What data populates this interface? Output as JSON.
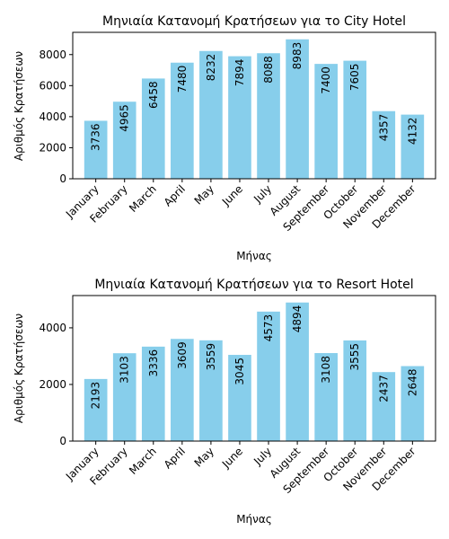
{
  "chart_data": [
    {
      "type": "bar",
      "title": "Μηνιαία Κατανομή Κρατήσεων για το City Hotel",
      "xlabel": "Μήνας",
      "ylabel": "Αριθμός Κρατήσεων",
      "categories": [
        "January",
        "February",
        "March",
        "April",
        "May",
        "June",
        "July",
        "August",
        "September",
        "October",
        "November",
        "December"
      ],
      "values": [
        3736,
        4965,
        6458,
        7480,
        8232,
        7894,
        8088,
        8983,
        7400,
        7605,
        4357,
        4132
      ],
      "value_labels": [
        "3736",
        "4965",
        "6458",
        "7480",
        "8232",
        "7894",
        "8088",
        "8983",
        "7400",
        "7605",
        "4357",
        "4132"
      ],
      "ylim": [
        0,
        9433
      ],
      "yticks": [
        0,
        2000,
        4000,
        6000,
        8000
      ],
      "ytick_labels": [
        "0",
        "2000",
        "4000",
        "6000",
        "8000"
      ],
      "bar_color": "#87CEEB",
      "grid": false,
      "legend": "none"
    },
    {
      "type": "bar",
      "title": "Μηνιαία Κατανομή Κρατήσεων για το Resort Hotel",
      "xlabel": "Μήνας",
      "ylabel": "Αριθμός Κρατήσεων",
      "categories": [
        "January",
        "February",
        "March",
        "April",
        "May",
        "June",
        "July",
        "August",
        "September",
        "October",
        "November",
        "December"
      ],
      "values": [
        2193,
        3103,
        3336,
        3609,
        3559,
        3045,
        4573,
        4894,
        3108,
        3555,
        2437,
        2648
      ],
      "value_labels": [
        "2193",
        "3103",
        "3336",
        "3609",
        "3559",
        "3045",
        "4573",
        "4894",
        "3108",
        "3555",
        "2437",
        "2648"
      ],
      "ylim": [
        0,
        5140
      ],
      "yticks": [
        0,
        2000,
        4000
      ],
      "ytick_labels": [
        "0",
        "2000",
        "4000"
      ],
      "bar_color": "#87CEEB",
      "grid": false,
      "legend": "none"
    }
  ]
}
